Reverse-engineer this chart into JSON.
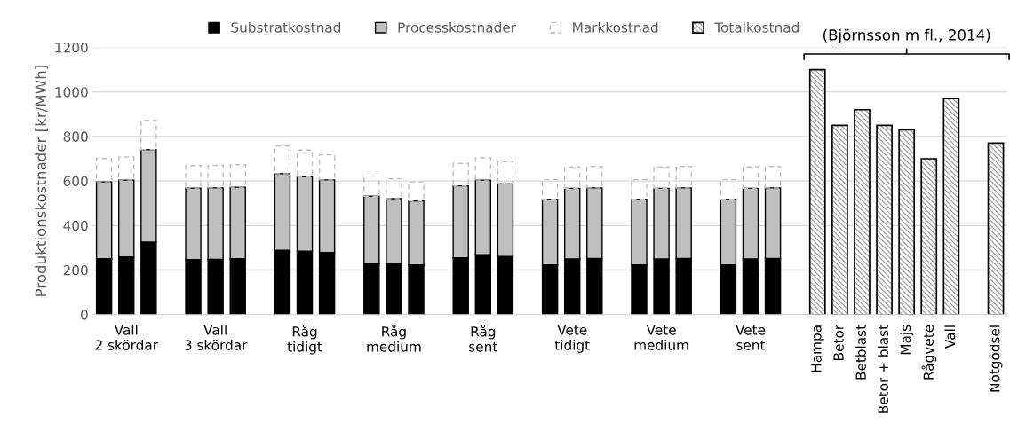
{
  "chart_data": {
    "type": "bar",
    "stacked": true,
    "categories": [
      null,
      "Vall\n2 skördar",
      null,
      null,
      null,
      "Vall\n3 skördar",
      null,
      null,
      null,
      "Råg\ntidigt",
      null,
      null,
      null,
      "Råg\nmedium",
      null,
      null,
      null,
      "Råg\nsent",
      null,
      null,
      null,
      "Vete\ntidigt",
      null,
      null,
      null,
      "Vete\nmedium",
      null,
      null,
      null,
      "Vete\nsent",
      null,
      null,
      "Hampa",
      "Betor",
      "Betblast",
      "Betor + blast",
      "Majs",
      "Rågvete",
      "Vall",
      null,
      "Nötgödsel"
    ],
    "series": [
      {
        "name": "Substratkostnad",
        "color": "#000000",
        "values": [
          251,
          259,
          326,
          null,
          247,
          248,
          251,
          null,
          289,
          285,
          279,
          null,
          229,
          227,
          223,
          null,
          255,
          269,
          261,
          null,
          223,
          250,
          252,
          null,
          223,
          250,
          252,
          null,
          223,
          250,
          252,
          null,
          null,
          null,
          null,
          null,
          null,
          null,
          null,
          null,
          null
        ]
      },
      {
        "name": "Processkostnader",
        "color": "#bfbfbf",
        "values": [
          345,
          345,
          415,
          null,
          321,
          321,
          321,
          null,
          344,
          334,
          326,
          null,
          303,
          294,
          288,
          null,
          323,
          335,
          326,
          null,
          295,
          317,
          317,
          null,
          295,
          317,
          317,
          null,
          295,
          317,
          317,
          null,
          null,
          null,
          null,
          null,
          null,
          null,
          null,
          null,
          null
        ]
      },
      {
        "name": "Markkostnad",
        "color": "#bfbfbf",
        "line_style": "dashed",
        "values": [
          105,
          104,
          132,
          null,
          101,
          101,
          101,
          null,
          124,
          120,
          113,
          null,
          90,
          89,
          85,
          null,
          101,
          100,
          100,
          null,
          88,
          96,
          96,
          null,
          88,
          96,
          96,
          null,
          88,
          96,
          96,
          null,
          null,
          null,
          null,
          null,
          null,
          null,
          null,
          null,
          null
        ]
      },
      {
        "name": "Totalkostnad",
        "color": "#000000",
        "values": [
          null,
          null,
          null,
          null,
          null,
          null,
          null,
          null,
          null,
          null,
          null,
          null,
          null,
          null,
          null,
          null,
          null,
          null,
          null,
          null,
          null,
          null,
          null,
          null,
          null,
          null,
          null,
          null,
          null,
          null,
          null,
          null,
          1100,
          850,
          920,
          850,
          830,
          700,
          970,
          null,
          770
        ]
      }
    ],
    "ylabel": "Produktionskostnader [kr/MWh]",
    "ylim": [
      0,
      1200
    ],
    "yticks": [
      0,
      200,
      400,
      600,
      800,
      1000,
      1200
    ],
    "grid": "y",
    "legend": "top",
    "annotations": [
      "(Björnsson m fl., 2014)"
    ]
  }
}
